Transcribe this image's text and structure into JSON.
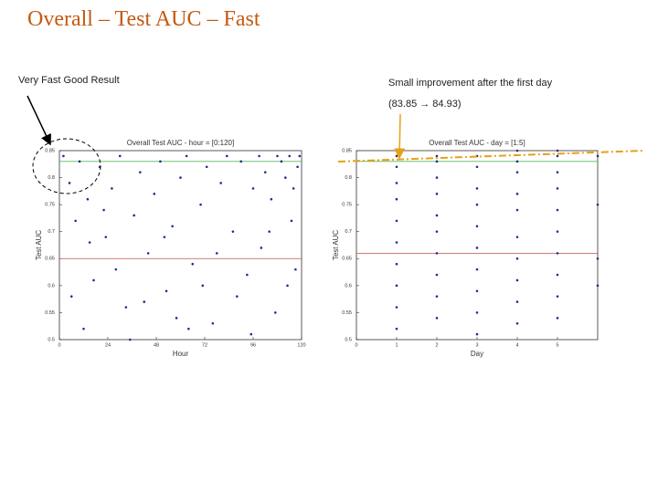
{
  "title": "Overall – Test AUC – Fast",
  "annotations": [
    "Very Fast Good Result",
    "Small improvement after the first day",
    "(83.85 → 84.93)"
  ],
  "chart_data": [
    {
      "type": "scatter",
      "title": "Overall Test AUC - hour = [0:120]",
      "x_label": "Hour",
      "y_label": "Test AUC",
      "xlim": [
        0,
        120
      ],
      "xticks": [
        0,
        24,
        48,
        72,
        96,
        120
      ],
      "ylim": [
        0.5,
        0.85
      ],
      "yticks": [
        0.5,
        0.55,
        0.6,
        0.65,
        0.7,
        0.75,
        0.8,
        0.85
      ],
      "reference_lines": [
        {
          "value": 0.83,
          "color": "#5cb85c"
        },
        {
          "value": 0.65,
          "color": "#c0504d"
        }
      ],
      "series": [
        {
          "name": "Test AUC",
          "color": "#1f2f8a",
          "x": [
            2,
            5,
            8,
            10,
            14,
            17,
            20,
            23,
            26,
            30,
            33,
            37,
            40,
            44,
            47,
            50,
            53,
            56,
            60,
            63,
            66,
            70,
            73,
            76,
            80,
            83,
            86,
            90,
            93,
            96,
            99,
            102,
            105,
            108,
            110,
            112,
            114,
            116,
            118,
            119,
            6,
            15,
            28,
            42,
            58,
            71,
            88,
            100,
            107,
            115,
            12,
            35,
            64,
            95,
            117,
            22,
            52,
            78,
            104,
            113
          ],
          "values": [
            0.84,
            0.79,
            0.72,
            0.83,
            0.76,
            0.61,
            0.82,
            0.69,
            0.78,
            0.84,
            0.56,
            0.73,
            0.81,
            0.66,
            0.77,
            0.83,
            0.59,
            0.71,
            0.8,
            0.84,
            0.64,
            0.75,
            0.82,
            0.53,
            0.79,
            0.84,
            0.7,
            0.83,
            0.62,
            0.78,
            0.84,
            0.81,
            0.76,
            0.84,
            0.83,
            0.8,
            0.84,
            0.78,
            0.82,
            0.84,
            0.58,
            0.68,
            0.63,
            0.57,
            0.54,
            0.6,
            0.58,
            0.67,
            0.55,
            0.72,
            0.52,
            0.5,
            0.52,
            0.51,
            0.63,
            0.74,
            0.69,
            0.66,
            0.7,
            0.6
          ]
        }
      ]
    },
    {
      "type": "scatter",
      "title": "Overall Test AUC - day = [1:5]",
      "x_label": "Day",
      "y_label": "Test AUC",
      "xlim": [
        0,
        6
      ],
      "xticks": [
        0,
        1,
        2,
        3,
        4,
        5
      ],
      "ylim": [
        0.5,
        0.85
      ],
      "yticks": [
        0.5,
        0.55,
        0.6,
        0.65,
        0.7,
        0.75,
        0.8,
        0.85
      ],
      "reference_lines": [
        {
          "value": 0.83,
          "color": "#5cb85c"
        },
        {
          "value": 0.66,
          "color": "#c0504d"
        }
      ],
      "series": [
        {
          "name": "Test AUC",
          "color": "#1f2f8a",
          "x": [
            1,
            1,
            1,
            1,
            1,
            1,
            1,
            1,
            1,
            1,
            2,
            2,
            2,
            2,
            2,
            2,
            2,
            2,
            2,
            2,
            3,
            3,
            3,
            3,
            3,
            3,
            3,
            3,
            3,
            3,
            4,
            4,
            4,
            4,
            4,
            4,
            4,
            4,
            4,
            4,
            5,
            5,
            5,
            5,
            5,
            5,
            5,
            5,
            5,
            5,
            6,
            6,
            6,
            6
          ],
          "values": [
            0.84,
            0.82,
            0.79,
            0.76,
            0.72,
            0.68,
            0.64,
            0.6,
            0.56,
            0.52,
            0.84,
            0.83,
            0.8,
            0.77,
            0.73,
            0.7,
            0.66,
            0.62,
            0.58,
            0.54,
            0.84,
            0.82,
            0.78,
            0.75,
            0.71,
            0.67,
            0.63,
            0.59,
            0.55,
            0.51,
            0.85,
            0.83,
            0.81,
            0.77,
            0.74,
            0.69,
            0.65,
            0.61,
            0.57,
            0.53,
            0.85,
            0.84,
            0.81,
            0.78,
            0.74,
            0.7,
            0.66,
            0.62,
            0.58,
            0.54,
            0.84,
            0.75,
            0.65,
            0.6
          ]
        }
      ]
    }
  ]
}
